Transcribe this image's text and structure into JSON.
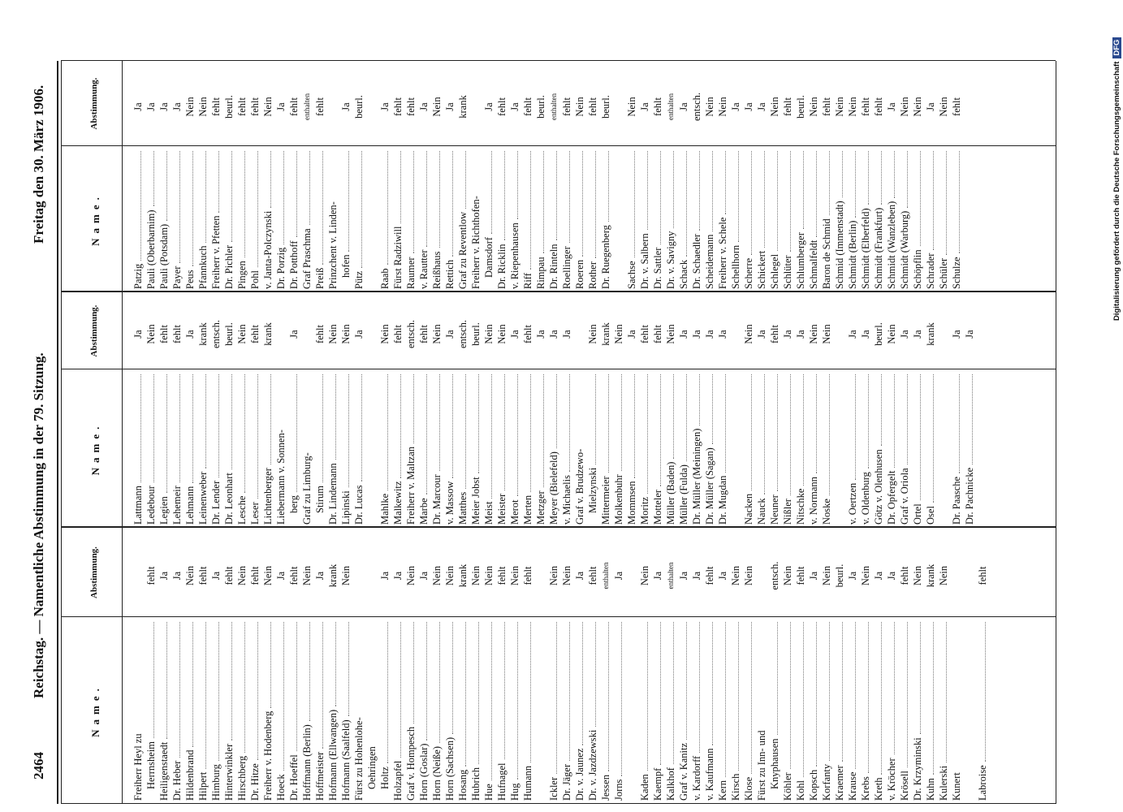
{
  "header": {
    "page": "2464",
    "title": "Reichstag. — Namentliche Abstimmung in der 79. Sitzung.",
    "date": "Freitag den 30. März 1906."
  },
  "table": {
    "name_header": "Name.",
    "vote_header": "Abstimmung.",
    "groups": [
      {
        "sections": [
          [
            [
              "Freiherr Heyl zu",
              null
            ],
            [
              "Herrnsheim",
              "fehlt"
            ],
            [
              "Heiligenstaedt",
              "Ja"
            ],
            [
              "Dr. Heber",
              "Ja"
            ],
            [
              "Hildenbrand",
              "Nein"
            ],
            [
              "Hilpert",
              "fehlt"
            ],
            [
              "Himburg",
              "Ja"
            ],
            [
              "Hinterwinkler",
              "fehlt"
            ],
            [
              "Hirschberg",
              "Nein"
            ],
            [
              "Dr. Hitze",
              "fehlt"
            ],
            [
              "Freiherr v. Hodenberg",
              "Nein"
            ],
            [
              "Hoeck",
              "Ja"
            ],
            [
              "Dr. Hoeffel",
              "fehlt"
            ],
            [
              "Hoffmann (Berlin)",
              "Nein"
            ],
            [
              "Hoffmeister",
              "Ja"
            ],
            [
              "Hofmann (Ellwangen)",
              "krank"
            ],
            [
              "Hofmann (Saalfeld)",
              "Nein"
            ],
            [
              "Fürst zu Hohenlohe-",
              null
            ],
            [
              "Oehringen",
              null
            ],
            [
              "Holtz",
              "Ja"
            ],
            [
              "Holzapfel",
              "Ja"
            ],
            [
              "Graf v. Hompesch",
              "Nein"
            ],
            [
              "Horn (Goslar)",
              "Ja"
            ],
            [
              "Horn (Neiße)",
              "Nein"
            ],
            [
              "Horn (Sachsen)",
              "Nein"
            ],
            [
              "Hosang",
              "krank"
            ],
            [
              "Hubrich",
              "Nein"
            ],
            [
              "Hue",
              "Nein"
            ],
            [
              "Hufnagel",
              "fehlt"
            ],
            [
              "Hug",
              "Nein"
            ],
            [
              "Humann",
              "fehlt"
            ]
          ],
          [
            [
              "Ickler",
              "Nein"
            ],
            [
              "Dr. Jäger",
              "Nein"
            ],
            [
              "Dr. v. Jaunez",
              "Ja"
            ],
            [
              "Dr. v. Jazdzewski",
              "fehlt"
            ],
            [
              "Jessen",
              "enthalten"
            ],
            [
              "Jorns",
              "Ja"
            ]
          ],
          [
            [
              "Kaden",
              "Nein"
            ],
            [
              "Kaempf",
              "Ja"
            ],
            [
              "Kalkhof",
              "enthalten"
            ],
            [
              "Graf v. Kanitz",
              "Ja"
            ],
            [
              "v. Kardorff",
              "Ja"
            ],
            [
              "v. Kaufmann",
              "fehlt"
            ],
            [
              "Kern",
              "Ja"
            ],
            [
              "Kirsch",
              "Nein"
            ],
            [
              "Klose",
              "Nein"
            ],
            [
              "Fürst zu Inn- und",
              null
            ],
            [
              "Knyphausen",
              "entsch."
            ],
            [
              "Köhler",
              "Nein"
            ],
            [
              "Kohl",
              "fehlt"
            ],
            [
              "Kopsch",
              "Ja"
            ],
            [
              "Korfanty",
              "Nein"
            ],
            [
              "Kraemer",
              "beurl."
            ],
            [
              "Krause",
              "Ja"
            ],
            [
              "Krebs",
              "Nein"
            ],
            [
              "Kreth",
              "Ja"
            ],
            [
              "v. Kröcher",
              "Ja"
            ],
            [
              "Krösell",
              "fehlt"
            ],
            [
              "Dr. Krzyminski",
              "Nein"
            ],
            [
              "Kuhn",
              "krank"
            ],
            [
              "Kulerski",
              "Nein"
            ],
            [
              "Kunert",
              null
            ]
          ],
          [
            [
              "Labroise",
              "fehlt"
            ]
          ]
        ]
      },
      {
        "sections": [
          [
            [
              "Lattmann",
              "Ja"
            ],
            [
              "Ledebour",
              "Nein"
            ],
            [
              "Legien",
              "fehlt"
            ],
            [
              "Lehemeir",
              "fehlt"
            ],
            [
              "Lehmann",
              "Ja"
            ],
            [
              "Leinenweber",
              "krank"
            ],
            [
              "Dr. Lender",
              "entsch."
            ],
            [
              "Dr. Leonhart",
              "beurl."
            ],
            [
              "Lesche",
              "Nein"
            ],
            [
              "Leser",
              "fehlt"
            ],
            [
              "Lichtenberger",
              "krank"
            ],
            [
              "Liebermann v. Sonnen-",
              null
            ],
            [
              "berg",
              "Ja"
            ],
            [
              "Graf zu Limburg-",
              null
            ],
            [
              "Stirum",
              "fehlt"
            ],
            [
              "Dr. Lindemann",
              "Nein"
            ],
            [
              "Lipinski",
              "Nein"
            ],
            [
              "Dr. Lucas",
              "Ja"
            ]
          ],
          [
            [
              "Mahlke",
              "Nein"
            ],
            [
              "Malkewitz",
              "fehlt"
            ],
            [
              "Freiherr v. Maltzan",
              "entsch."
            ],
            [
              "Marbe",
              "fehlt"
            ],
            [
              "Dr. Marcour",
              "Nein"
            ],
            [
              "v. Massow",
              "Ja"
            ],
            [
              "Matthes",
              "entsch."
            ],
            [
              "Meier Jobst",
              "beurl."
            ],
            [
              "Meist",
              "Nein"
            ],
            [
              "Meister",
              "Nein"
            ],
            [
              "Merot",
              "Ja"
            ],
            [
              "Merten",
              "fehlt"
            ],
            [
              "Metzger",
              "Ja"
            ],
            [
              "Meyer (Bielefeld)",
              "Ja"
            ],
            [
              "v. Michaelis",
              "Ja"
            ],
            [
              "Graf v. Brudzewo-",
              null
            ],
            [
              "Mielzynski",
              "Nein"
            ],
            [
              "Mittermeier",
              "krank"
            ],
            [
              "Molkenbuhr",
              "Nein"
            ],
            [
              "Mommsen",
              "Ja"
            ],
            [
              "Moritz",
              "fehlt"
            ],
            [
              "Motteler",
              "fehlt"
            ],
            [
              "Müller (Baden)",
              "Nein"
            ],
            [
              "Müller (Fulda)",
              "Ja"
            ],
            [
              "Dr. Müller (Meiningen)",
              "Ja"
            ],
            [
              "Dr. Müller (Sagan)",
              "Ja"
            ],
            [
              "Dr. Mugdan",
              "Ja"
            ]
          ],
          [
            [
              "Nacken",
              "Nein"
            ],
            [
              "Nauck",
              "Ja"
            ],
            [
              "Neuner",
              "fehlt"
            ],
            [
              "Nißler",
              "Ja"
            ],
            [
              "Nitschke",
              "Ja"
            ],
            [
              "v. Normann",
              "Nein"
            ],
            [
              "Noske",
              "Nein"
            ]
          ],
          [
            [
              "v. Oertzen",
              "Ja"
            ],
            [
              "v. Oldenburg",
              "Ja"
            ],
            [
              "Götz v. Olenhusen",
              "beurl."
            ],
            [
              "Dr. Opfergelt",
              "Nein"
            ],
            [
              "Graf v. Oriola",
              "Ja"
            ],
            [
              "Ortel",
              "Ja"
            ],
            [
              "Osel",
              "krank"
            ]
          ],
          [
            [
              "Dr. Paasche",
              "Ja"
            ],
            [
              "Dr. Pachnicke",
              "Ja"
            ]
          ]
        ]
      },
      {
        "sections": [
          [
            [
              "Patzig",
              "Ja"
            ],
            [
              "Pauli (Oberbarnim)",
              "Ja"
            ],
            [
              "Pauli (Potsdam)",
              "Ja"
            ],
            [
              "Payer",
              "Ja"
            ],
            [
              "Peus",
              "Nein"
            ],
            [
              "Pfannkuch",
              "Nein"
            ],
            [
              "Freiherr v. Pfetten",
              "fehlt"
            ],
            [
              "Dr. Pichler",
              "beurl."
            ],
            [
              "Pingen",
              "fehlt"
            ],
            [
              "Pohl",
              "fehlt"
            ],
            [
              "v. Janta-Polczynski",
              "Nein"
            ],
            [
              "Dr. Porzig",
              "Ja"
            ],
            [
              "Dr. Potthoff",
              "fehlt"
            ],
            [
              "Graf Praschma",
              "enthalten"
            ],
            [
              "Preiß",
              "fehlt"
            ],
            [
              "Prinzchent v. Linden-",
              null
            ],
            [
              "hofen",
              "Ja"
            ],
            [
              "Pütz",
              "beurl."
            ]
          ],
          [
            [
              "Raab",
              "Ja"
            ],
            [
              "Fürst Radziwill",
              "fehlt"
            ],
            [
              "Raumer",
              "fehlt"
            ],
            [
              "v. Rautter",
              "Ja"
            ],
            [
              "Reißhaus",
              "Nein"
            ],
            [
              "Rettich",
              "Ja"
            ],
            [
              "Graf zu Reventlow",
              "krank"
            ],
            [
              "Freiherr v. Richthofen-",
              null
            ],
            [
              "Damsdorf",
              "Ja"
            ],
            [
              "Dr. Ricklin",
              "fehlt"
            ],
            [
              "v. Riepenhausen",
              "Ja"
            ],
            [
              "Riff",
              "fehlt"
            ],
            [
              "Rimpau",
              "beurl."
            ],
            [
              "Dr. Rinteln",
              "enthalten"
            ],
            [
              "Roellinger",
              "fehlt"
            ],
            [
              "Roeren",
              "Nein"
            ],
            [
              "Rother",
              "fehlt"
            ],
            [
              "Dr. Ruegenberg",
              "beurl."
            ]
          ],
          [
            [
              "Sachse",
              "Nein"
            ],
            [
              "Dr. v. Salbern",
              "Ja"
            ],
            [
              "Dr. Sattler",
              "fehlt"
            ],
            [
              "Dr. v. Savigny",
              "enthalten"
            ],
            [
              "Schack",
              "Ja"
            ],
            [
              "Dr. Schaedler",
              "entsch."
            ],
            [
              "Scheidemann",
              "Nein"
            ],
            [
              "Freiherr v. Schele",
              "Nein"
            ],
            [
              "Schellhorn",
              "Ja"
            ],
            [
              "Scherre",
              "Ja"
            ],
            [
              "Schickert",
              "Ja"
            ],
            [
              "Schlegel",
              "Nein"
            ],
            [
              "Schlüter",
              "fehlt"
            ],
            [
              "Schlumberger",
              "beurl."
            ],
            [
              "Schmalfeldt",
              "Nein"
            ],
            [
              "Baron de Schmid",
              "fehlt"
            ],
            [
              "Schmid (Immenstadt)",
              "Nein"
            ],
            [
              "Schmidt (Berlin)",
              "Nein"
            ],
            [
              "Schmidt (Elberfeld)",
              "fehlt"
            ],
            [
              "Schmidt (Frankfurt)",
              "fehlt"
            ],
            [
              "Schmidt (Wanzleben)",
              "Ja"
            ],
            [
              "Schmidt (Warburg)",
              "Nein"
            ],
            [
              "Schöpflin",
              "Nein"
            ],
            [
              "Schrader",
              "Ja"
            ],
            [
              "Schüler",
              "Nein"
            ],
            [
              "Schulze",
              "fehlt"
            ]
          ]
        ]
      }
    ]
  },
  "footer": {
    "note": "Digitalisierung gefördert durch die Deutsche Forschungsgemeinschaft",
    "logo": "DFG"
  }
}
